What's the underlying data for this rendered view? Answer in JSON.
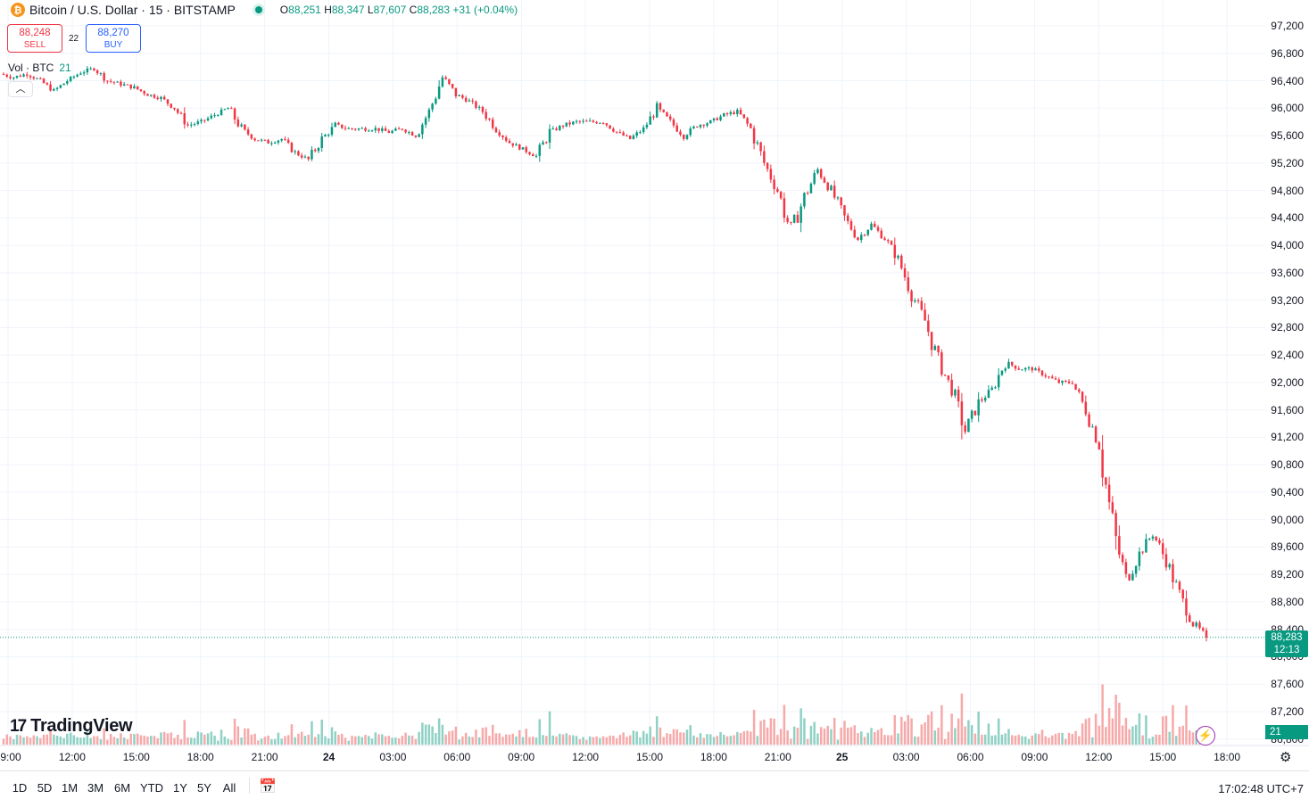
{
  "header": {
    "icon": "btc-icon",
    "symbol": "Bitcoin / U.S. Dollar · 15 · BITSTAMP",
    "open_k": "O",
    "open": "88,251",
    "high_k": "H",
    "high": "88,347",
    "low_k": "L",
    "low": "87,607",
    "close_k": "C",
    "close": "88,283",
    "change": "+31 (+0.04%)"
  },
  "trade": {
    "sell_price": "88,248",
    "sell_label": "SELL",
    "spread": "22",
    "buy_price": "88,270",
    "buy_label": "BUY"
  },
  "volume_legend": {
    "label": "Vol · BTC",
    "value": "21"
  },
  "collapse_icon": "chevron-up-icon",
  "price_axis": [
    "97,200",
    "96,800",
    "96,400",
    "96,000",
    "95,600",
    "95,200",
    "94,800",
    "94,400",
    "94,000",
    "93,600",
    "93,200",
    "92,800",
    "92,400",
    "92,000",
    "91,600",
    "91,200",
    "90,800",
    "90,400",
    "90,000",
    "89,600",
    "89,200",
    "88,800",
    "88,400",
    "88,000",
    "87,600",
    "87,200",
    "86,800"
  ],
  "price_axis_values": [
    97200,
    96800,
    96400,
    96000,
    95600,
    95200,
    94800,
    94400,
    94000,
    93600,
    93200,
    92800,
    92400,
    92000,
    91600,
    91200,
    90800,
    90400,
    90000,
    89600,
    89200,
    88800,
    88400,
    88000,
    87600,
    87200,
    86800
  ],
  "time_axis": [
    {
      "label": "9:00",
      "bold": false
    },
    {
      "label": "12:00",
      "bold": false
    },
    {
      "label": "15:00",
      "bold": false
    },
    {
      "label": "18:00",
      "bold": false
    },
    {
      "label": "21:00",
      "bold": false
    },
    {
      "label": "24",
      "bold": true
    },
    {
      "label": "03:00",
      "bold": false
    },
    {
      "label": "06:00",
      "bold": false
    },
    {
      "label": "09:00",
      "bold": false
    },
    {
      "label": "12:00",
      "bold": false
    },
    {
      "label": "15:00",
      "bold": false
    },
    {
      "label": "18:00",
      "bold": false
    },
    {
      "label": "21:00",
      "bold": false
    },
    {
      "label": "25",
      "bold": true
    },
    {
      "label": "03:00",
      "bold": false
    },
    {
      "label": "06:00",
      "bold": false
    },
    {
      "label": "09:00",
      "bold": false
    },
    {
      "label": "12:00",
      "bold": false
    },
    {
      "label": "15:00",
      "bold": false
    },
    {
      "label": "18:00",
      "bold": false
    }
  ],
  "last_price": {
    "value": "88,283",
    "countdown": "12:13",
    "level": 88283
  },
  "last_volume": "21",
  "brand": "TradingView",
  "ranges": [
    "1D",
    "5D",
    "1M",
    "3M",
    "6M",
    "YTD",
    "1Y",
    "5Y",
    "All"
  ],
  "clock": "17:02:48 UTC+7",
  "colors": {
    "up": "#089981",
    "down": "#f23645",
    "up_vol": "#8fd1c4",
    "down_vol": "#f7a9a9",
    "grid": "#f0f3fa"
  },
  "chart_data": {
    "type": "candlestick",
    "interval": "15",
    "ylim": [
      86800,
      97400
    ],
    "series": [
      {
        "name": "close_path",
        "values": [
          96500,
          96450,
          96500,
          96400,
          96250,
          96400,
          96520,
          96580,
          96400,
          96350,
          96300,
          96200,
          96150,
          96000,
          95750,
          95800,
          95900,
          96000,
          95700,
          95550,
          95500,
          95550,
          95350,
          95250,
          95550,
          95750,
          95700,
          95700,
          95700,
          95650,
          95700,
          95600,
          95950,
          96450,
          96200,
          96100,
          95950,
          95700,
          95500,
          95400,
          95300,
          95650,
          95750,
          95800,
          95800,
          95800,
          95650,
          95550,
          95700,
          96000,
          95800,
          95600,
          95750,
          95800,
          95900,
          95950,
          95700,
          95200,
          94800,
          94200,
          94700,
          95100,
          94800,
          94400,
          94100,
          94300,
          94100,
          93800,
          93300,
          92900,
          92300,
          91900,
          91300,
          91700,
          91900,
          92300,
          92200,
          92200,
          92100,
          92000,
          92000,
          91600,
          91100,
          89900,
          89100,
          89500,
          89800,
          89400,
          88900,
          88500,
          88283
        ]
      }
    ]
  }
}
